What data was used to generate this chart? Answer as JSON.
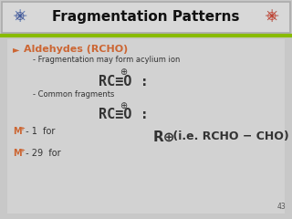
{
  "title": "Fragmentation Patterns",
  "title_color": "#111111",
  "header_bg": "#d8d8d8",
  "header_border": "#aaaaaa",
  "body_bg": "#c8c8c8",
  "green_line_color": "#88bb00",
  "orange_color": "#cc6633",
  "dark_color": "#333333",
  "heading": "Aldehydes (RCHO)",
  "sub1": "- Fragmentation may form acylium ion",
  "sub2": "- Common fragments",
  "acylium": "RC≡O :",
  "plus_sym": "⊕",
  "bullet": "►",
  "mplus_orange": "M",
  "mplus_sup": "+",
  "m1_rest": " - 1  for",
  "m29_rest": " - 29  for",
  "fragment_r": "R⊕",
  "fragment_rest": " (i.e. RCHO − CHO)",
  "page_num": "43",
  "atom_left": "⚛",
  "atom_right": "⚛"
}
